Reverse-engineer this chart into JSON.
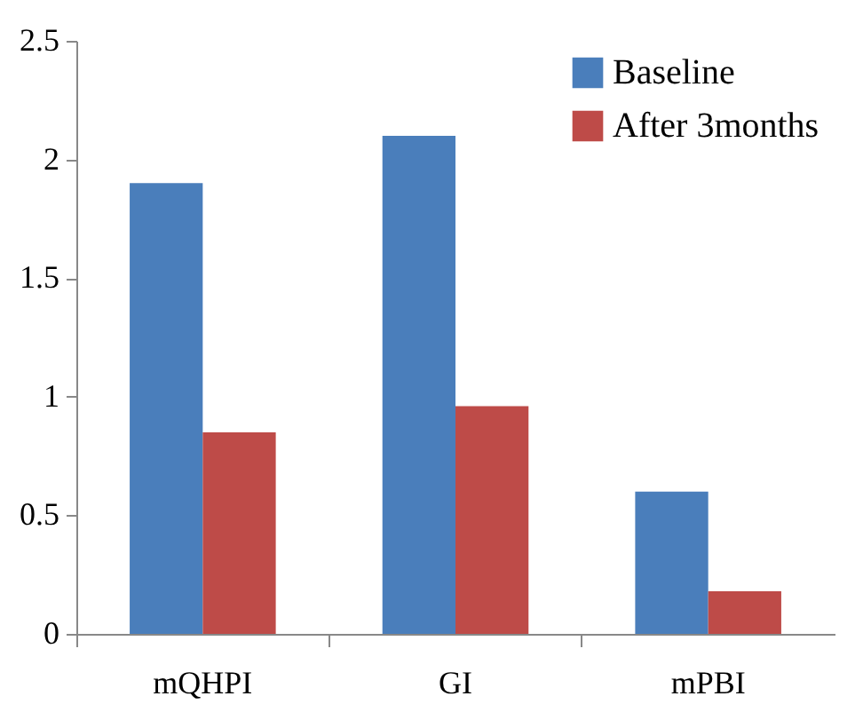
{
  "chart_data": {
    "type": "bar",
    "categories": [
      "mQHPI",
      "GI",
      "mPBI"
    ],
    "series": [
      {
        "name": "Baseline",
        "color": "#4a7ebb",
        "values": [
          1.9,
          2.1,
          0.6
        ]
      },
      {
        "name": "After 3months",
        "color": "#be4b48",
        "values": [
          0.85,
          0.96,
          0.18
        ]
      }
    ],
    "ylim": [
      0,
      2.5
    ],
    "yticks": [
      0,
      0.5,
      1,
      1.5,
      2,
      2.5
    ],
    "grid": false,
    "legend": "top right"
  }
}
